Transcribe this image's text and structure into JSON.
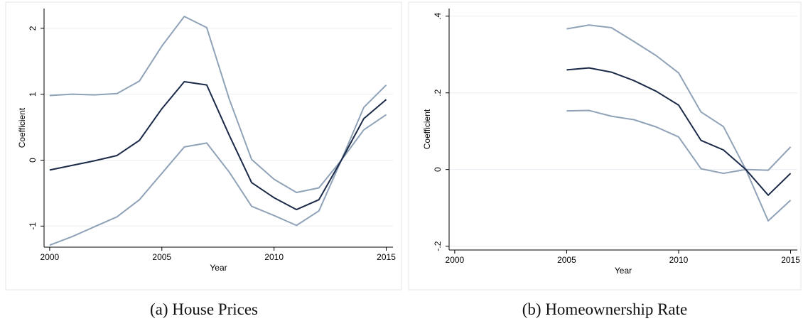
{
  "chart_data": [
    {
      "type": "line",
      "caption": "(a) House Prices",
      "xlabel": "Year",
      "ylabel": "Coefficient",
      "x": [
        2000,
        2001,
        2002,
        2003,
        2004,
        2005,
        2006,
        2007,
        2008,
        2009,
        2010,
        2011,
        2012,
        2013,
        2014,
        2015
      ],
      "xlim": [
        1999.75,
        2015.3
      ],
      "xticks": [
        2000,
        2005,
        2010,
        2015
      ],
      "ylim": [
        -1.32,
        2.3
      ],
      "yticks": [
        -1,
        0,
        1,
        2
      ],
      "grid": true,
      "series": [
        {
          "color": "#8fa2b7",
          "values": [
            0.98,
            1.0,
            0.99,
            1.01,
            1.2,
            1.73,
            2.18,
            2.01,
            0.93,
            0.01,
            -0.29,
            -0.49,
            -0.42,
            0.0,
            0.8,
            1.14
          ]
        },
        {
          "color": "#8fa2b7",
          "values": [
            -1.29,
            -1.16,
            -1.01,
            -0.86,
            -0.6,
            -0.2,
            0.2,
            0.26,
            -0.18,
            -0.7,
            -0.84,
            -0.99,
            -0.77,
            0.0,
            0.46,
            0.69
          ]
        },
        {
          "color": "#1b2a48",
          "values": [
            -0.15,
            -0.08,
            -0.01,
            0.07,
            0.3,
            0.78,
            1.19,
            1.14,
            0.38,
            -0.34,
            -0.57,
            -0.75,
            -0.6,
            0.0,
            0.63,
            0.92
          ]
        }
      ]
    },
    {
      "type": "line",
      "caption": "(b) Homeownership Rate",
      "xlabel": "Year",
      "ylabel": "Coefficient",
      "x": [
        2005,
        2006,
        2007,
        2008,
        2009,
        2010,
        2011,
        2012,
        2013,
        2014,
        2015
      ],
      "xlim": [
        1999.75,
        2015.3
      ],
      "xticks": [
        2000,
        2005,
        2010,
        2015
      ],
      "ylim": [
        -0.21,
        0.42
      ],
      "yticks": [
        {
          "value": -0.2,
          "label": "-.2"
        },
        0,
        {
          "value": 0.2,
          "label": ".2"
        },
        {
          "value": 0.4,
          "label": ".4"
        }
      ],
      "grid": true,
      "series": [
        {
          "color": "#8fa2b7",
          "values": [
            0.367,
            0.377,
            0.37,
            0.334,
            0.297,
            0.252,
            0.15,
            0.112,
            0.0,
            -0.002,
            0.059
          ]
        },
        {
          "color": "#8fa2b7",
          "values": [
            0.153,
            0.154,
            0.139,
            0.13,
            0.111,
            0.085,
            0.002,
            -0.01,
            0.0,
            -0.134,
            -0.08
          ]
        },
        {
          "color": "#1b2a48",
          "values": [
            0.26,
            0.265,
            0.254,
            0.232,
            0.204,
            0.168,
            0.076,
            0.051,
            0.0,
            -0.067,
            -0.01
          ]
        }
      ]
    }
  ]
}
